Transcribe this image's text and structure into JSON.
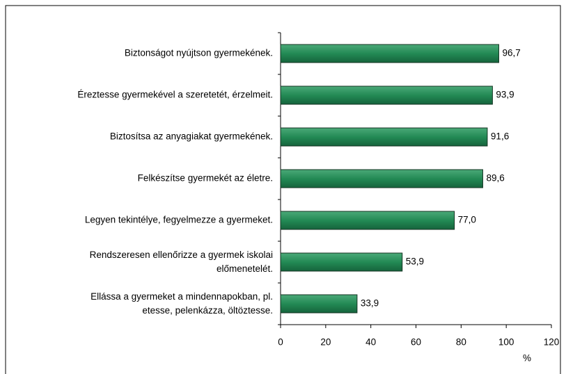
{
  "chart_data": {
    "type": "bar",
    "orientation": "horizontal",
    "categories": [
      "Biztonságot nyújtson gyermekének.",
      "Éreztesse gyermekével a szeretetét, érzelmeit.",
      "Biztosítsa az anyagiakat gyermekének.",
      "Felkészítse gyermekét az életre.",
      "Legyen tekintélye, fegyelmezze a gyermeket.",
      "Rendszeresen ellenőrizze a gyermek iskolai\nelőmenetelét.",
      "Ellássa a gyermeket a mindennapokban, pl.\netesse, pelenkázza, öltöztesse."
    ],
    "values": [
      96.7,
      93.9,
      91.6,
      89.6,
      77.0,
      53.9,
      33.9
    ],
    "value_labels": [
      "96,7",
      "93,9",
      "91,6",
      "89,6",
      "77,0",
      "53,9",
      "33,9"
    ],
    "color": "#228b55",
    "xlabel": "%",
    "xlim": [
      0,
      120
    ],
    "xticks": [
      0,
      20,
      40,
      60,
      80,
      100,
      120
    ],
    "grid": false
  }
}
